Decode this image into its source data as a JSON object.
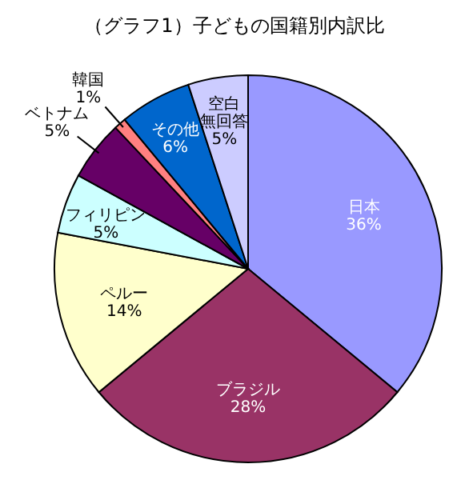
{
  "chart_data": {
    "type": "pie",
    "title": "（グラフ1）子どもの国籍別内訳比",
    "categories": [
      "日本",
      "ブラジル",
      "ペルー",
      "フィリピン",
      "ベトナム",
      "韓国",
      "その他",
      "空白無回答"
    ],
    "values": [
      36,
      28,
      14,
      5,
      5,
      1,
      6,
      5
    ],
    "colors": [
      "#9999ff",
      "#993366",
      "#ffffcc",
      "#ccffff",
      "#660066",
      "#ff8080",
      "#0066cc",
      "#ccccff"
    ],
    "value_labels": [
      "36%",
      "28%",
      "14%",
      "5%",
      "5%",
      "1%",
      "6%",
      "5%"
    ]
  }
}
